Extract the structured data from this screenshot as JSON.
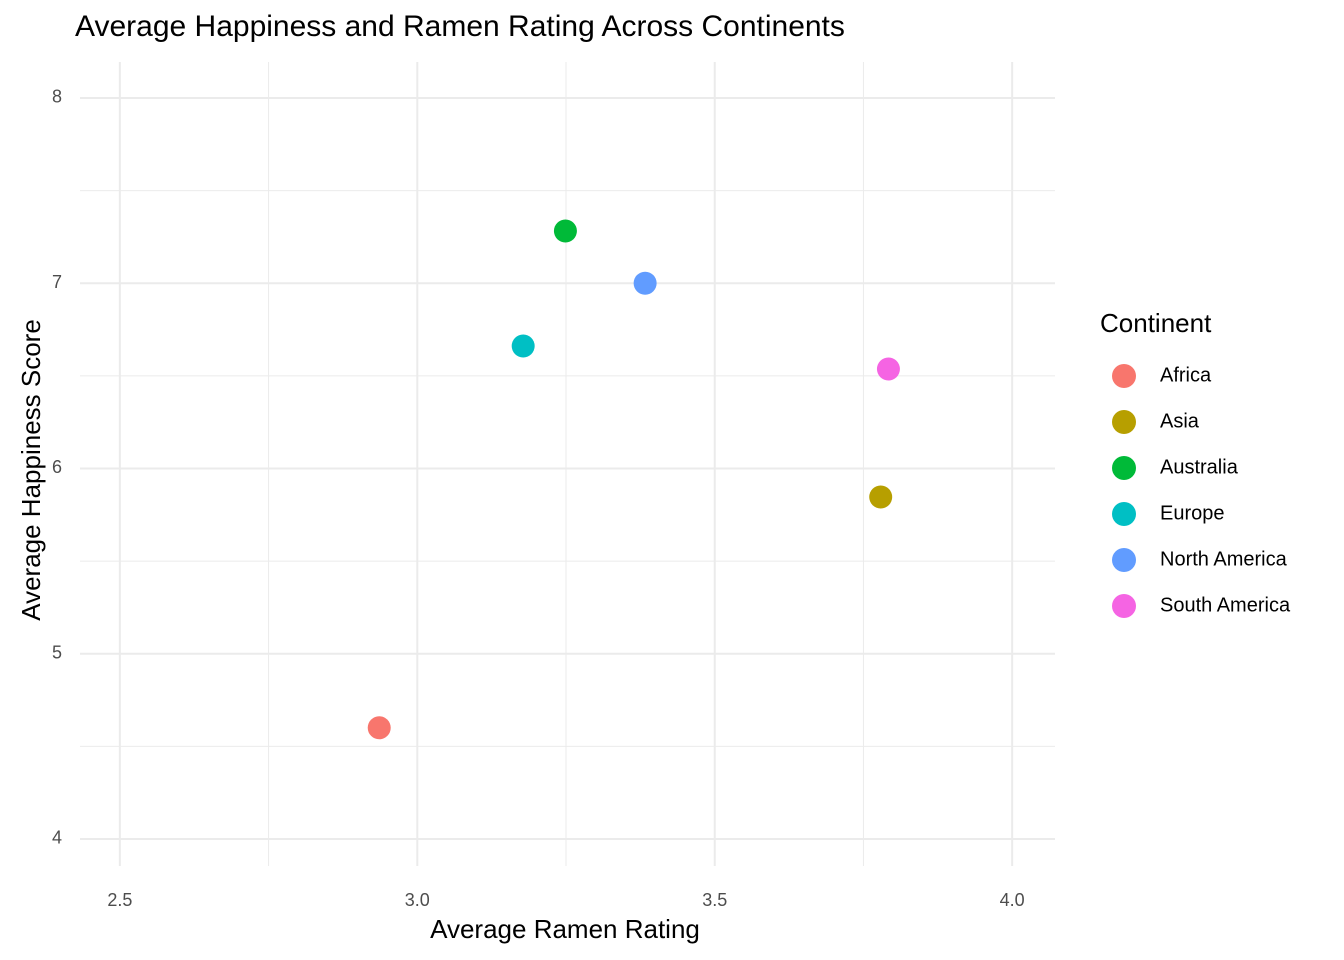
{
  "chart_data": {
    "type": "scatter",
    "title": "Average Happiness and Ramen Rating Across Continents",
    "x_label": "Average Ramen Rating",
    "y_label": "Average Happiness Score",
    "legend_title": "Continent",
    "legend_position": "right",
    "grid": true,
    "xlim": [
      2.433,
      4.072
    ],
    "ylim": [
      3.854,
      8.194
    ],
    "xticks": [
      2.5,
      {
        "value": 3,
        "label": "3.0"
      },
      3.5,
      {
        "value": 4,
        "label": "4.0"
      }
    ],
    "yticks": [
      4,
      5,
      6,
      7,
      8
    ],
    "series": [
      {
        "name": "Africa",
        "color": "#f8766d",
        "x": [
          2.936
        ],
        "values": [
          4.6
        ]
      },
      {
        "name": "Asia",
        "color": "#b79f00",
        "x": [
          3.779
        ],
        "values": [
          5.846
        ]
      },
      {
        "name": "Australia",
        "color": "#00ba38",
        "x": [
          3.249
        ],
        "values": [
          7.282
        ]
      },
      {
        "name": "Europe",
        "color": "#00bfc4",
        "x": [
          3.178
        ],
        "values": [
          6.661
        ]
      },
      {
        "name": "North America",
        "color": "#619cff",
        "x": [
          3.383
        ],
        "values": [
          7.0
        ]
      },
      {
        "name": "South America",
        "color": "#f564e3",
        "x": [
          3.792
        ],
        "values": [
          6.537
        ]
      }
    ]
  }
}
